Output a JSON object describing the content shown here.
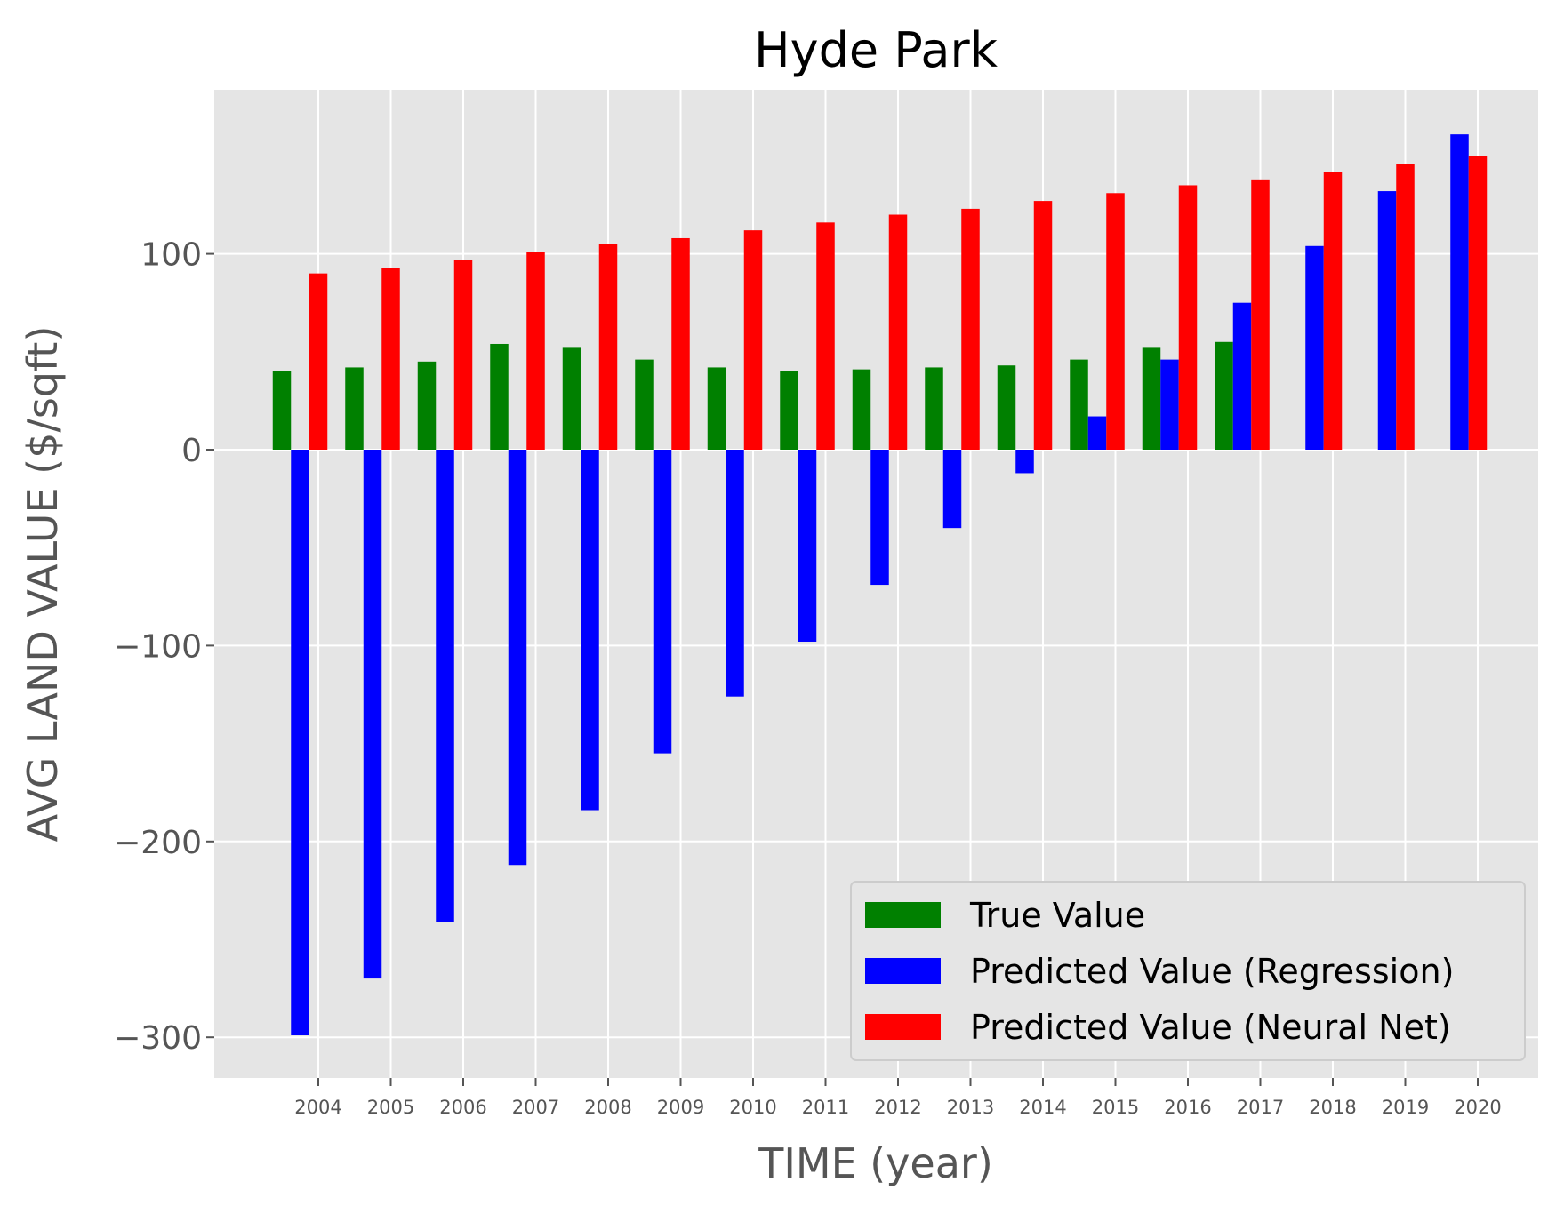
{
  "chart_data": {
    "type": "bar",
    "title": "Hyde Park",
    "xlabel": "TIME (year)",
    "ylabel": "AVG LAND VALUE ($/sqft)",
    "categories": [
      "2004",
      "2005",
      "2006",
      "2007",
      "2008",
      "2009",
      "2010",
      "2011",
      "2012",
      "2013",
      "2014",
      "2015",
      "2016",
      "2017",
      "2018",
      "2019",
      "2020"
    ],
    "series": [
      {
        "name": "True Value",
        "color": "#008000",
        "values": [
          40,
          42,
          45,
          54,
          52,
          46,
          42,
          40,
          41,
          42,
          43,
          46,
          52,
          55,
          null,
          null,
          null
        ]
      },
      {
        "name": "Predicted Value (Regression)",
        "color": "#0000ff",
        "values": [
          -299,
          -270,
          -241,
          -212,
          -184,
          -155,
          -126,
          -98,
          -69,
          -40,
          -12,
          17,
          46,
          75,
          104,
          132,
          161
        ]
      },
      {
        "name": "Predicted Value (Neural Net)",
        "color": "#ff0000",
        "values": [
          90,
          93,
          97,
          101,
          105,
          108,
          112,
          116,
          120,
          123,
          127,
          131,
          135,
          138,
          142,
          146,
          150
        ]
      }
    ],
    "ylim": [
      -320,
      184
    ],
    "yticks": [
      100,
      0,
      -100,
      -200,
      -300
    ],
    "ytick_labels": [
      "100",
      "0",
      "−100",
      "−200",
      "−300"
    ],
    "grid": true,
    "legend_position": "lower-right",
    "background": "#e5e5e5"
  }
}
